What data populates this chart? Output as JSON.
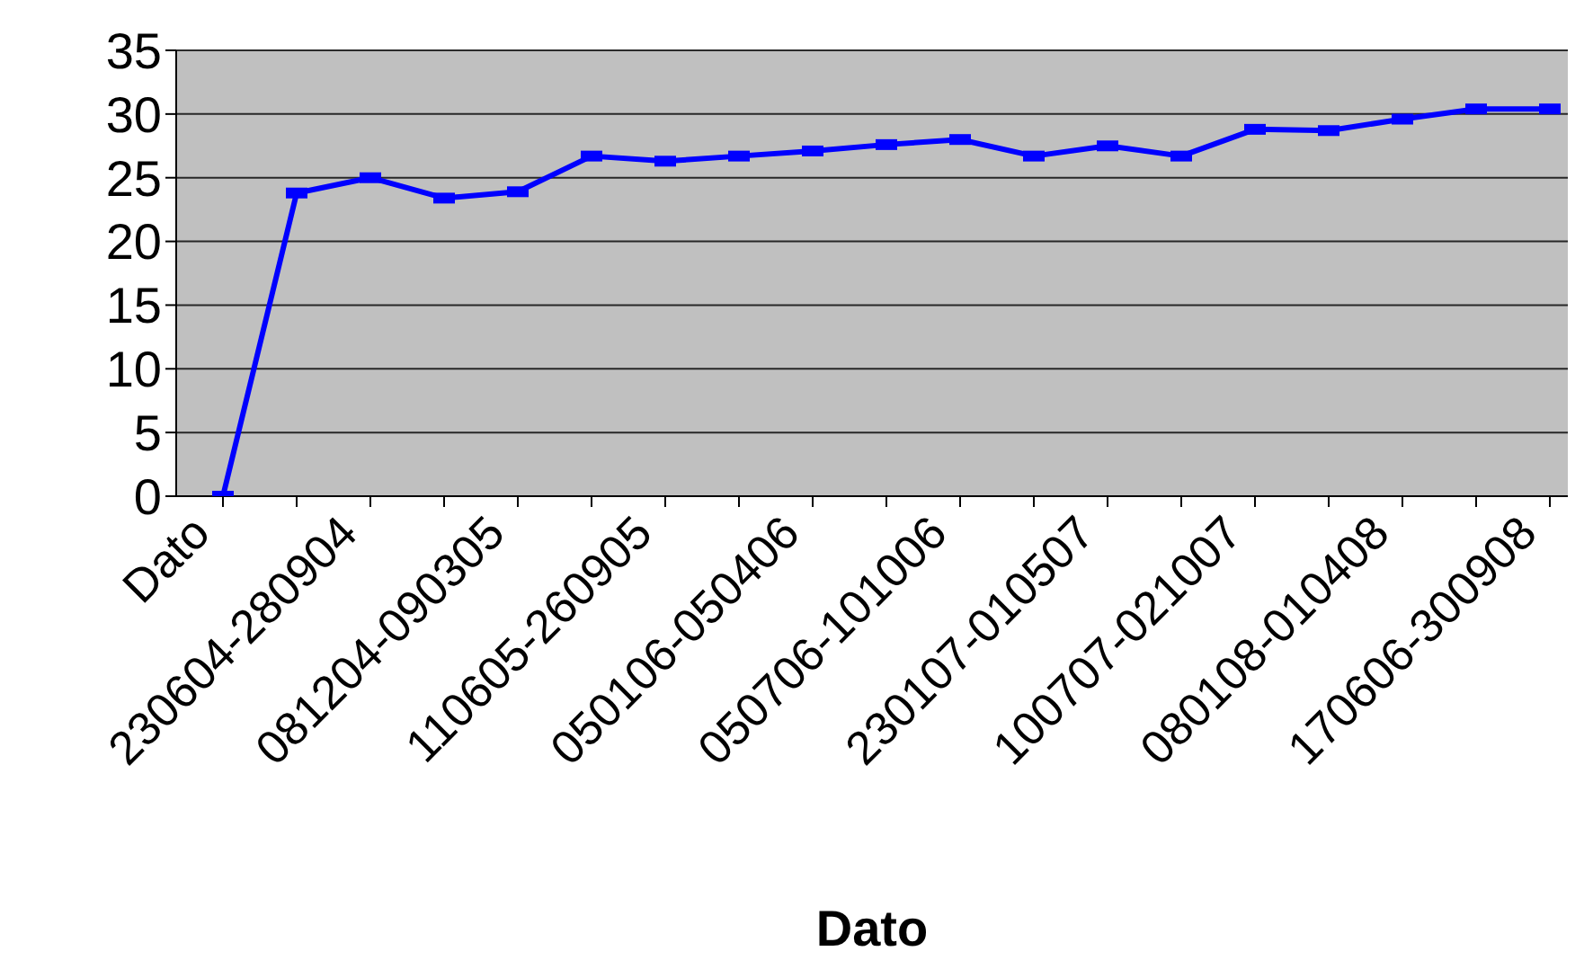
{
  "chart_data": {
    "type": "line",
    "xlabel": "Dato",
    "categories": [
      "Dato",
      null,
      "230604-280904",
      null,
      "081204-090305",
      null,
      "110605-260905",
      null,
      "050106-050406",
      null,
      "050706-101006",
      null,
      "230107-010507",
      null,
      "100707-021007",
      null,
      "080108-010408",
      null,
      "170606-300908"
    ],
    "series": [
      {
        "color": "#0000ff",
        "values": [
          0,
          23.8,
          25.0,
          23.4,
          23.9,
          26.7,
          26.3,
          26.7,
          27.1,
          27.6,
          28.0,
          26.7,
          27.5,
          26.7,
          28.8,
          28.7,
          29.6,
          30.4,
          30.4
        ]
      }
    ],
    "ylim": [
      0,
      35
    ],
    "yticks": [
      0,
      5,
      10,
      15,
      20,
      25,
      30,
      35
    ],
    "grid": "y",
    "marker": "square",
    "line_style": "solid"
  }
}
